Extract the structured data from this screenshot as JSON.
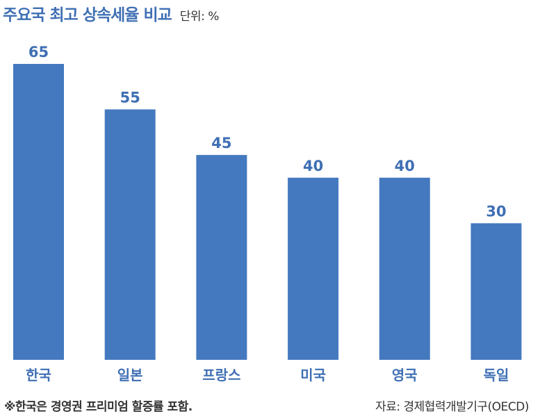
{
  "header": {
    "title": "주요국 최고 상속세율 비교",
    "unit": "단위: %"
  },
  "footnote": "※한국은 경영권 프리미엄 할증률 포함.",
  "source": "자료: 경제협력개발기구(OECD)",
  "colors": {
    "bar": "#4479bf",
    "label": "#3f6fb4",
    "text": "#333333"
  },
  "chart_data": {
    "type": "bar",
    "title": "주요국 최고 상속세율 비교",
    "categories": [
      "한국",
      "일본",
      "프랑스",
      "미국",
      "영국",
      "독일"
    ],
    "values": [
      65,
      55,
      45,
      40,
      40,
      30
    ],
    "ylim": [
      0,
      65
    ],
    "xlabel": "",
    "ylabel": "",
    "grid": false,
    "legend": "none",
    "data_labels": true
  }
}
